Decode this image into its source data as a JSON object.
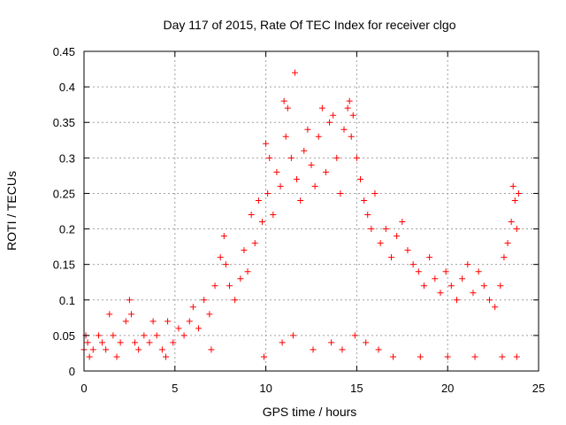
{
  "chart_data": {
    "type": "scatter",
    "title": "Day 117 of 2015, Rate Of TEC Index for receiver clgo",
    "xlabel": "GPS time / hours",
    "ylabel": "ROTI / TECUs",
    "xlim": [
      0,
      25
    ],
    "ylim": [
      0,
      0.45
    ],
    "xticks": [
      0,
      5,
      10,
      15,
      20,
      25
    ],
    "yticks": [
      0,
      0.05,
      0.1,
      0.15,
      0.2,
      0.25,
      0.3,
      0.35,
      0.4,
      0.45
    ],
    "xtick_labels": [
      "0",
      "5",
      "10",
      "15",
      "20",
      "25"
    ],
    "ytick_labels": [
      "0",
      "0.05",
      "0.1",
      "0.15",
      "0.2",
      "0.25",
      "0.3",
      "0.35",
      "0.4",
      "0.45"
    ],
    "grid": true,
    "marker": "+",
    "color": "#ff0000",
    "x": [
      0.0,
      0.1,
      0.2,
      0.5,
      0.8,
      1.0,
      1.2,
      1.4,
      1.6,
      2.0,
      2.3,
      2.5,
      2.6,
      2.8,
      3.0,
      3.3,
      3.6,
      3.8,
      4.0,
      4.3,
      4.6,
      4.9,
      5.2,
      5.5,
      5.8,
      6.0,
      6.3,
      6.6,
      6.9,
      7.2,
      7.5,
      7.7,
      7.8,
      8.0,
      8.3,
      8.6,
      8.8,
      9.0,
      9.2,
      9.4,
      9.6,
      9.8,
      10.0,
      10.1,
      10.2,
      10.4,
      10.6,
      10.8,
      11.0,
      11.1,
      11.2,
      11.4,
      11.6,
      11.7,
      11.9,
      12.1,
      12.3,
      12.5,
      12.7,
      12.9,
      13.1,
      13.3,
      13.5,
      13.7,
      13.9,
      14.1,
      14.3,
      14.5,
      14.6,
      14.7,
      14.8,
      15.0,
      15.2,
      15.4,
      15.6,
      15.8,
      16.0,
      16.3,
      16.6,
      16.9,
      17.2,
      17.5,
      17.8,
      18.1,
      18.4,
      18.7,
      19.0,
      19.3,
      19.6,
      19.9,
      20.2,
      20.5,
      20.8,
      21.1,
      21.4,
      21.7,
      22.0,
      22.3,
      22.6,
      22.9,
      23.1,
      23.3,
      23.5,
      23.6,
      23.7,
      23.8,
      23.9,
      0.3,
      1.8,
      4.5,
      7.0,
      9.9,
      10.9,
      11.5,
      12.6,
      13.6,
      14.2,
      14.9,
      15.5,
      16.2,
      17.0,
      18.5,
      20.0,
      21.5,
      23.0,
      23.8
    ],
    "y": [
      0.03,
      0.05,
      0.04,
      0.03,
      0.05,
      0.04,
      0.03,
      0.08,
      0.05,
      0.04,
      0.07,
      0.1,
      0.08,
      0.04,
      0.03,
      0.05,
      0.04,
      0.07,
      0.05,
      0.03,
      0.07,
      0.04,
      0.06,
      0.05,
      0.07,
      0.09,
      0.06,
      0.1,
      0.08,
      0.12,
      0.16,
      0.19,
      0.15,
      0.12,
      0.1,
      0.13,
      0.17,
      0.14,
      0.22,
      0.18,
      0.24,
      0.21,
      0.32,
      0.25,
      0.3,
      0.22,
      0.28,
      0.26,
      0.38,
      0.33,
      0.37,
      0.3,
      0.42,
      0.27,
      0.24,
      0.31,
      0.34,
      0.29,
      0.26,
      0.33,
      0.37,
      0.28,
      0.35,
      0.36,
      0.3,
      0.25,
      0.34,
      0.37,
      0.38,
      0.33,
      0.36,
      0.3,
      0.27,
      0.24,
      0.22,
      0.2,
      0.25,
      0.18,
      0.2,
      0.16,
      0.19,
      0.21,
      0.17,
      0.15,
      0.14,
      0.12,
      0.16,
      0.13,
      0.11,
      0.14,
      0.12,
      0.1,
      0.13,
      0.15,
      0.11,
      0.14,
      0.12,
      0.1,
      0.09,
      0.12,
      0.16,
      0.18,
      0.21,
      0.26,
      0.24,
      0.2,
      0.25,
      0.02,
      0.02,
      0.02,
      0.03,
      0.02,
      0.04,
      0.05,
      0.03,
      0.04,
      0.03,
      0.05,
      0.04,
      0.03,
      0.02,
      0.02,
      0.02,
      0.02,
      0.02,
      0.02
    ]
  }
}
